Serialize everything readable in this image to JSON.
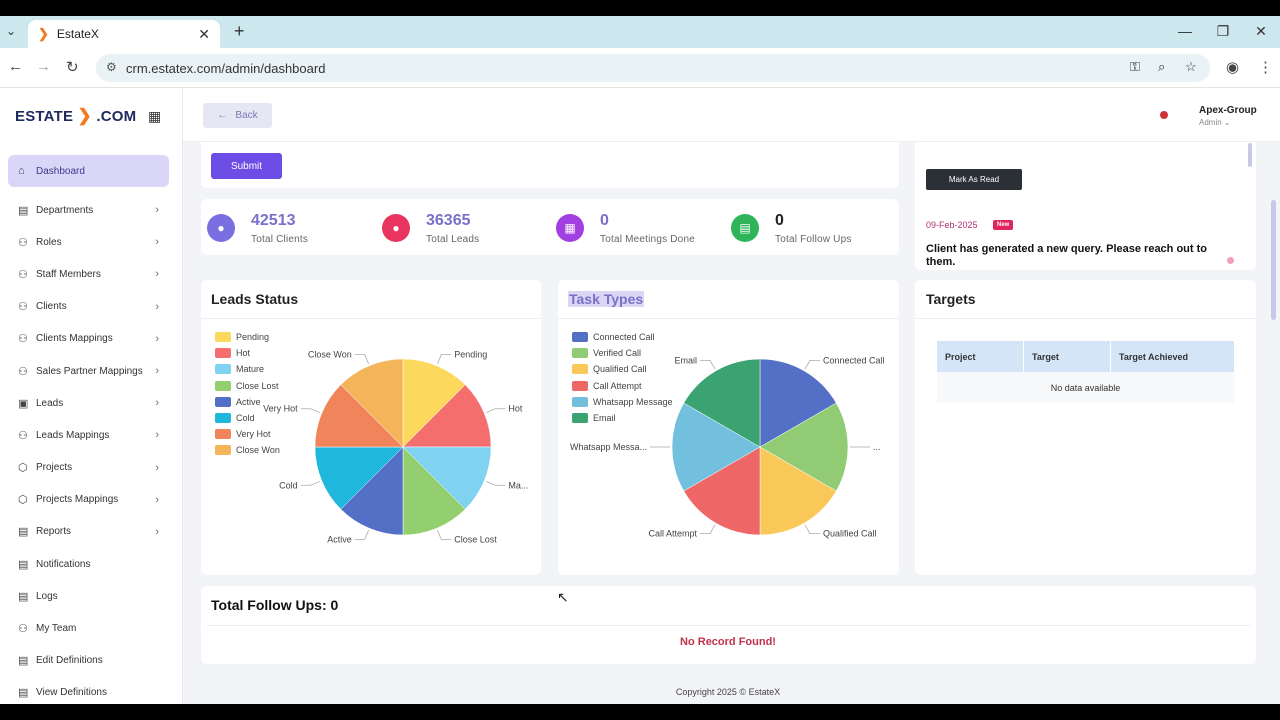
{
  "browser": {
    "tab_title": "EstateX",
    "url": "crm.estatex.com/admin/dashboard",
    "new_tab": "+",
    "close": "✕"
  },
  "sidebar": {
    "logo_left": "ESTATE",
    "logo_right": ".COM",
    "items": [
      {
        "label": "Dashboard"
      },
      {
        "label": "Departments"
      },
      {
        "label": "Roles"
      },
      {
        "label": "Staff Members"
      },
      {
        "label": "Clients"
      },
      {
        "label": "Clients Mappings"
      },
      {
        "label": "Sales Partner Mappings"
      },
      {
        "label": "Leads"
      },
      {
        "label": "Leads Mappings"
      },
      {
        "label": "Projects"
      },
      {
        "label": "Projects Mappings"
      },
      {
        "label": "Reports"
      },
      {
        "label": "Notifications"
      },
      {
        "label": "Logs"
      },
      {
        "label": "My Team"
      },
      {
        "label": "Edit Definitions"
      },
      {
        "label": "View Definitions"
      }
    ]
  },
  "topbar": {
    "back_label": "Back",
    "user_name": "Apex-Group",
    "user_role": "Admin"
  },
  "form": {
    "submit_label": "Submit"
  },
  "stats": [
    {
      "value": "42513",
      "label": "Total Clients",
      "color": "#7a6fe0"
    },
    {
      "value": "36365",
      "label": "Total Leads",
      "color": "#e8345e"
    },
    {
      "value": "0",
      "label": "Total Meetings Done",
      "color": "#a23fe0"
    },
    {
      "value": "0",
      "label": "Total Follow Ups",
      "color": "#2fb45a"
    }
  ],
  "notifications": {
    "mark_read": "Mark As Read",
    "date": "09-Feb-2025",
    "badge": "New",
    "message": "Client has generated a new query. Please reach out to them."
  },
  "leads_status": {
    "title": "Leads Status"
  },
  "task_types": {
    "title": "Task Types"
  },
  "targets": {
    "title": "Targets",
    "columns": [
      "Project",
      "Target",
      "Target Achieved"
    ],
    "empty": "No data available"
  },
  "follow_ups": {
    "title": "Total Follow Ups: 0",
    "empty": "No Record Found!"
  },
  "footer": "Copyright 2025 © EstateX",
  "chart_data": [
    {
      "type": "pie",
      "title": "Leads Status",
      "categories": [
        "Pending",
        "Hot",
        "Mature",
        "Close Lost",
        "Active",
        "Cold",
        "Very Hot",
        "Close Won"
      ],
      "values": [
        1,
        1,
        1,
        1,
        1,
        1,
        1,
        1
      ],
      "colors": [
        "#fcd95c",
        "#f56e6e",
        "#7fd3f0",
        "#94cf6f",
        "#5470c6",
        "#1fb7db",
        "#f0845b",
        "#f4b45a"
      ],
      "slice_labels": [
        "Pending",
        "Hot",
        "Ma...",
        "Close Lost",
        "Active",
        "Cold",
        "Very Hot",
        "Close Won"
      ],
      "legend": "top-left"
    },
    {
      "type": "pie",
      "title": "Task Types",
      "categories": [
        "Connected Call",
        "Verified Call",
        "Qualified Call",
        "Call Attempt",
        "Whatsapp Message",
        "Email"
      ],
      "values": [
        1,
        1,
        1,
        1,
        1,
        1
      ],
      "colors": [
        "#5470c6",
        "#91cc75",
        "#fac858",
        "#ee6666",
        "#73c0de",
        "#3ba272"
      ],
      "slice_labels": [
        "Connected Call",
        "...",
        "Qualified Call",
        "Call Attempt",
        "Whatsapp Messa...",
        "Email"
      ],
      "legend": "top-left"
    }
  ]
}
